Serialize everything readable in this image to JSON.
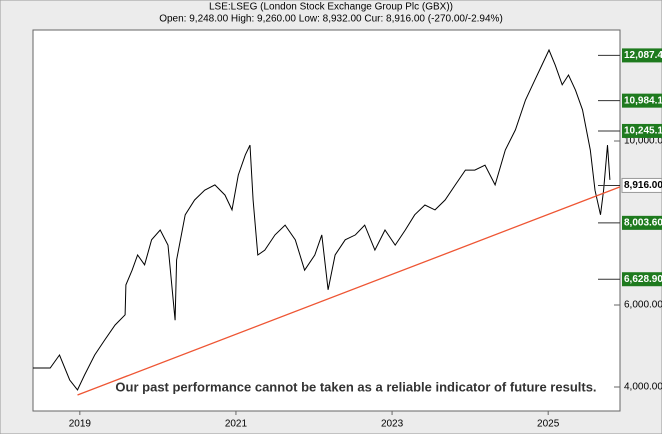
{
  "chart_data": {
    "type": "line",
    "title": "LSE:LSEG (London Stock Exchange Group Plc (GBX))",
    "subtitle": "Open: 9,248.00 High: 9,260.00 Low: 8,932.00 Cur: 8,916.00 (-270.00/-2.94%)",
    "annotation": "Our past performance cannot be taken as a reliable indicator of future results.",
    "xlim": [
      2018.4,
      2025.92
    ],
    "xticks": [
      2019,
      2021,
      2023,
      2025
    ],
    "ylim": [
      3415,
      12707
    ],
    "yticks": [
      {
        "value": 4000,
        "label": "4,000.00"
      },
      {
        "value": 6000,
        "label": "6,000.00"
      },
      {
        "value": 10000,
        "label": "10,000.0"
      }
    ],
    "series": [
      {
        "name": "LSE:LSEG",
        "color": "#000000",
        "x": [
          2018.4,
          2018.62,
          2018.74,
          2018.87,
          2018.97,
          2019.06,
          2019.19,
          2019.32,
          2019.45,
          2019.58,
          2019.59,
          2019.67,
          2019.74,
          2019.83,
          2019.92,
          2020.03,
          2020.13,
          2020.22,
          2020.24,
          2020.35,
          2020.47,
          2020.6,
          2020.73,
          2020.86,
          2020.95,
          2021.03,
          2021.12,
          2021.18,
          2021.22,
          2021.28,
          2021.37,
          2021.5,
          2021.63,
          2021.76,
          2021.88,
          2022.01,
          2022.1,
          2022.18,
          2022.27,
          2022.4,
          2022.53,
          2022.65,
          2022.78,
          2022.91,
          2023.04,
          2023.17,
          2023.29,
          2023.42,
          2023.55,
          2023.68,
          2023.81,
          2023.94,
          2024.06,
          2024.19,
          2024.32,
          2024.45,
          2024.58,
          2024.71,
          2024.83,
          2024.92,
          2025.01,
          2025.09,
          2025.18,
          2025.26,
          2025.35,
          2025.44,
          2025.54,
          2025.6,
          2025.67,
          2025.71,
          2025.76,
          2025.79
        ],
        "values": [
          4463,
          4463,
          4780,
          4170,
          3930,
          4290,
          4780,
          5150,
          5510,
          5760,
          6490,
          6850,
          7220,
          6980,
          7590,
          7830,
          7460,
          5630,
          7100,
          8200,
          8560,
          8800,
          8930,
          8680,
          8320,
          9170,
          9660,
          9900,
          8560,
          7220,
          7340,
          7710,
          7950,
          7590,
          6850,
          7220,
          7710,
          6370,
          7220,
          7590,
          7710,
          7950,
          7340,
          7830,
          7460,
          7830,
          8200,
          8440,
          8320,
          8560,
          8930,
          9290,
          9290,
          9410,
          8930,
          9780,
          10270,
          11000,
          11490,
          11850,
          12220,
          11850,
          11370,
          11610,
          11240,
          10760,
          9780,
          8800,
          8200,
          8800,
          9900,
          9050
        ]
      },
      {
        "name": "trendline",
        "color": "#ee5533",
        "x": [
          2018.97,
          2025.92
        ],
        "values": [
          3805,
          8880
        ]
      }
    ],
    "levels": [
      {
        "value": 12087.4,
        "label": "12,087.4",
        "color": "#1e7a1e"
      },
      {
        "value": 10984.1,
        "label": "10,984.1",
        "color": "#1e7a1e"
      },
      {
        "value": 10245.1,
        "label": "10,245.1",
        "color": "#1e7a1e"
      },
      {
        "value": 8916.0,
        "label": "8,916.00",
        "color": "#ffffff"
      },
      {
        "value": 8003.6,
        "label": "8,003.60",
        "color": "#1e7a1e"
      },
      {
        "value": 6628.9,
        "label": "6,628.90",
        "color": "#1e7a1e"
      }
    ]
  }
}
